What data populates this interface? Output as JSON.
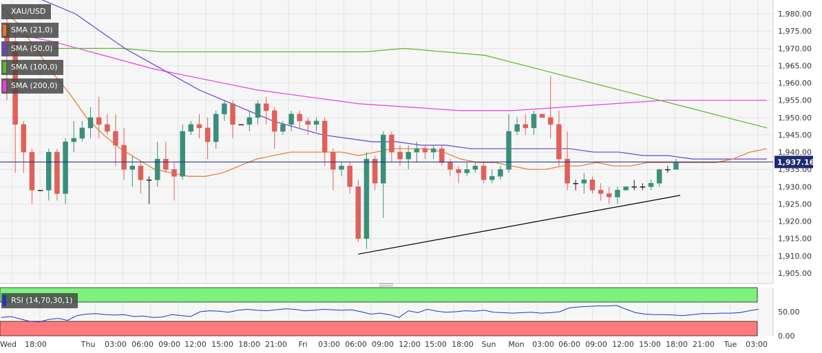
{
  "chart_data": [
    {
      "type": "candlestick",
      "symbol": "XAU/USD",
      "last_price_label": "1,937.16",
      "last_price": 1937.16,
      "ylim": [
        1902,
        1984
      ],
      "y_ticks": [
        1905,
        1910,
        1915,
        1920,
        1925,
        1930,
        1935,
        1940,
        1945,
        1950,
        1955,
        1960,
        1965,
        1970,
        1975,
        1980
      ],
      "y_tick_labels": [
        "1,905.00",
        "1,910.00",
        "1,915.00",
        "1,920.00",
        "1,925.00",
        "1,930.00",
        "1,935.00",
        "1,940.00",
        "1,945.00",
        "1,950.00",
        "1,955.00",
        "1,960.00",
        "1,965.00",
        "1,970.00",
        "1,975.00",
        "1,980.00"
      ],
      "x_labels": [
        "Wed",
        "18:00",
        "Thu",
        "03:00",
        "06:00",
        "09:00",
        "12:00",
        "15:00",
        "18:00",
        "21:00",
        "Fri",
        "03:00",
        "06:00",
        "09:00",
        "12:00",
        "15:00",
        "18:00",
        "Sun",
        "Mon",
        "03:00",
        "06:00",
        "09:00",
        "12:00",
        "15:00",
        "18:00",
        "21:00",
        "Tue",
        "03:00"
      ],
      "colors": {
        "up": "#3a8f7a",
        "down": "#e0605a",
        "sma21": "#e8762b",
        "sma50": "#6a3fd6",
        "sma100": "#58b82c",
        "sma200": "#e83ee0",
        "price_line": "#1a237e",
        "trendline": "#000000"
      },
      "legend": [
        {
          "label": "SMA (21,0)",
          "color": "#e8762b"
        },
        {
          "label": "SMA (50,0)",
          "color": "#6a3fd6"
        },
        {
          "label": "SMA (100,0)",
          "color": "#58b82c"
        },
        {
          "label": "SMA (200,0)",
          "color": "#e83ee0"
        }
      ],
      "candles": [
        [
          1977,
          1972,
          1979,
          1955
        ],
        [
          1972,
          1948,
          1974,
          1934
        ],
        [
          1948,
          1940,
          1949,
          1934
        ],
        [
          1940,
          1929,
          1941,
          1925
        ],
        [
          1929,
          1929,
          1929,
          1929
        ],
        [
          1929,
          1940,
          1941,
          1926
        ],
        [
          1940,
          1928,
          1941,
          1926
        ],
        [
          1928,
          1943,
          1944,
          1925
        ],
        [
          1943,
          1944,
          1949,
          1940
        ],
        [
          1944,
          1947,
          1949,
          1943
        ],
        [
          1947,
          1950,
          1953,
          1944
        ],
        [
          1950,
          1948,
          1956,
          1944
        ],
        [
          1948,
          1946,
          1951,
          1945
        ],
        [
          1946,
          1942,
          1951,
          1936
        ],
        [
          1942,
          1935,
          1947,
          1932
        ],
        [
          1935,
          1936,
          1939,
          1930
        ],
        [
          1936,
          1932,
          1937,
          1928
        ],
        [
          1932,
          1932,
          1933,
          1925
        ],
        [
          1932,
          1938,
          1943,
          1930
        ],
        [
          1938,
          1935,
          1943,
          1934
        ],
        [
          1935,
          1933,
          1937,
          1926
        ],
        [
          1933,
          1946,
          1948,
          1932
        ],
        [
          1946,
          1948,
          1949,
          1945
        ],
        [
          1948,
          1947,
          1951,
          1944
        ],
        [
          1947,
          1943,
          1950,
          1938
        ],
        [
          1943,
          1951,
          1952,
          1941
        ],
        [
          1951,
          1954,
          1955,
          1949
        ],
        [
          1954,
          1948,
          1955,
          1944
        ],
        [
          1948,
          1948,
          1948,
          1948
        ],
        [
          1948,
          1950,
          1952,
          1946
        ],
        [
          1950,
          1954,
          1955,
          1948
        ],
        [
          1954,
          1952,
          1956,
          1948
        ],
        [
          1952,
          1946,
          1953,
          1941
        ],
        [
          1946,
          1948,
          1949,
          1945
        ],
        [
          1948,
          1951,
          1952,
          1946
        ],
        [
          1951,
          1949,
          1952,
          1947
        ],
        [
          1949,
          1948,
          1950,
          1945
        ],
        [
          1948,
          1949,
          1950,
          1946
        ],
        [
          1949,
          1940,
          1950,
          1936
        ],
        [
          1940,
          1935,
          1941,
          1929
        ],
        [
          1935,
          1936,
          1937,
          1933
        ],
        [
          1936,
          1930,
          1937,
          1928
        ],
        [
          1930,
          1915,
          1932,
          1914
        ],
        [
          1915,
          1938,
          1940,
          1912
        ],
        [
          1938,
          1931,
          1939,
          1929
        ],
        [
          1931,
          1945,
          1946,
          1921
        ],
        [
          1945,
          1940,
          1946,
          1937
        ],
        [
          1940,
          1938,
          1942,
          1936
        ],
        [
          1938,
          1940,
          1942,
          1935
        ],
        [
          1940,
          1941,
          1943,
          1937
        ],
        [
          1941,
          1940,
          1942,
          1938
        ],
        [
          1940,
          1941,
          1942,
          1938
        ],
        [
          1941,
          1937,
          1942,
          1936
        ],
        [
          1937,
          1935,
          1938,
          1933
        ],
        [
          1935,
          1934,
          1936,
          1931
        ],
        [
          1934,
          1935,
          1937,
          1933
        ],
        [
          1935,
          1936,
          1937,
          1934
        ],
        [
          1936,
          1932,
          1937,
          1931
        ],
        [
          1932,
          1933,
          1935,
          1931
        ],
        [
          1933,
          1935,
          1936,
          1932
        ],
        [
          1935,
          1946,
          1951,
          1934
        ],
        [
          1946,
          1948,
          1950,
          1945
        ],
        [
          1948,
          1947,
          1951,
          1945
        ],
        [
          1947,
          1951,
          1952,
          1945
        ],
        [
          1951,
          1950,
          1950,
          1950
        ],
        [
          1950,
          1948,
          1962,
          1944
        ],
        [
          1948,
          1938,
          1952,
          1936
        ],
        [
          1938,
          1931,
          1946,
          1929
        ],
        [
          1931,
          1931,
          1932,
          1929
        ],
        [
          1931,
          1932,
          1934,
          1928
        ],
        [
          1932,
          1929,
          1933,
          1928
        ],
        [
          1929,
          1928,
          1931,
          1926
        ],
        [
          1928,
          1927,
          1930,
          1925
        ],
        [
          1927,
          1929,
          1930,
          1925
        ],
        [
          1929,
          1930,
          1930,
          1930
        ],
        [
          1930,
          1930,
          1932,
          1929
        ],
        [
          1930,
          1930,
          1931,
          1929
        ],
        [
          1930,
          1931,
          1932,
          1929
        ],
        [
          1931,
          1935,
          1935,
          1930
        ],
        [
          1935,
          1935,
          1936,
          1934
        ],
        [
          1935,
          1937,
          1938,
          1935
        ]
      ],
      "sma21": [
        1982,
        1977,
        1970,
        1963,
        1957,
        1950,
        1945,
        1941,
        1938,
        1935,
        1934,
        1933,
        1933,
        1934,
        1936,
        1938,
        1939,
        1940,
        1940,
        1940,
        1940,
        1939,
        1940,
        1941,
        1941,
        1941,
        1940,
        1938,
        1937,
        1937,
        1936,
        1935,
        1935,
        1936,
        1936,
        1937,
        1936,
        1936,
        1937,
        1937,
        1937,
        1937,
        1937,
        1938,
        1940,
        1941
      ],
      "sma50": [
        1988,
        1986,
        1983,
        1980,
        1975,
        1970,
        1966,
        1962,
        1958,
        1955,
        1952,
        1949,
        1947,
        1945,
        1944,
        1943,
        1943,
        1942,
        1942,
        1941,
        1941,
        1941,
        1941,
        1941,
        1940,
        1940,
        1939,
        1939,
        1938,
        1938,
        1938,
        1938
      ],
      "sma100": [
        1971,
        1970,
        1970,
        1970,
        1969,
        1969,
        1969,
        1969,
        1969,
        1969,
        1970,
        1969,
        1968,
        1965,
        1962,
        1959,
        1956,
        1953,
        1950,
        1947
      ],
      "sma200": [
        1975,
        1972,
        1968,
        1964,
        1961,
        1958,
        1956,
        1954,
        1953,
        1952,
        1952,
        1953,
        1954,
        1955,
        1955,
        1955
      ],
      "trendline": {
        "from": [
          42,
          1910.5
        ],
        "to": [
          80.5,
          1927.5
        ]
      }
    },
    {
      "type": "line",
      "indicator_label": "RSI (14,70,30,1)",
      "ylim": [
        0,
        100
      ],
      "y_ticks": [
        0,
        50
      ],
      "y_tick_labels": [
        "0.00",
        "50.00"
      ],
      "overbought": 70,
      "oversold": 30,
      "colors": {
        "line": "#1e33c8",
        "overbought_zone": "#7df07d",
        "oversold_zone": "#ff7a7a"
      },
      "values": [
        38,
        40,
        35,
        30,
        29,
        34,
        36,
        32,
        42,
        45,
        46,
        44,
        43,
        44,
        40,
        41,
        38,
        39,
        44,
        42,
        40,
        50,
        52,
        51,
        49,
        53,
        55,
        53,
        52,
        54,
        56,
        55,
        52,
        53,
        55,
        54,
        53,
        54,
        50,
        45,
        47,
        44,
        38,
        52,
        48,
        55,
        51,
        49,
        50,
        52,
        51,
        53,
        49,
        48,
        47,
        48,
        49,
        47,
        48,
        50,
        58,
        60,
        61,
        62,
        62,
        63,
        55,
        48,
        45,
        44,
        44,
        43,
        42,
        44,
        46,
        46,
        47,
        47,
        48,
        52,
        55
      ]
    }
  ]
}
